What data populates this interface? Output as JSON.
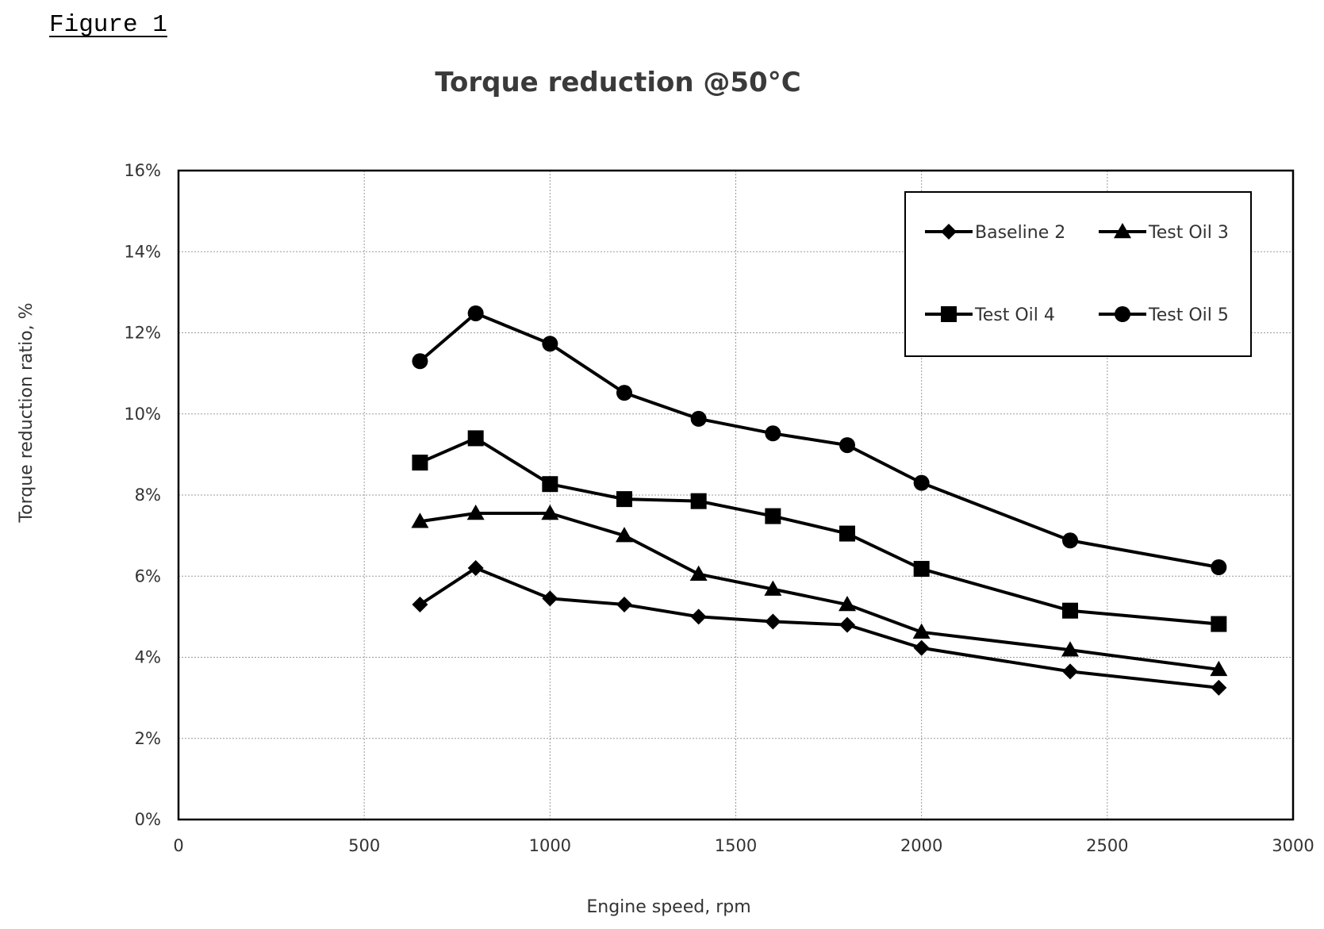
{
  "figure_label": "Figure 1",
  "chart_data": {
    "type": "line",
    "title": "Torque reduction @50°C",
    "xlabel": "Engine speed, rpm",
    "ylabel": "Torque reduction ratio, %",
    "xlim": [
      0,
      3000
    ],
    "ylim": [
      0,
      16
    ],
    "x_ticks": [
      0,
      500,
      1000,
      1500,
      2000,
      2500,
      3000
    ],
    "x_tick_labels": [
      "0",
      "500",
      "1000",
      "1500",
      "2000",
      "2500",
      "3000"
    ],
    "y_ticks": [
      0,
      2,
      4,
      6,
      8,
      10,
      12,
      14,
      16
    ],
    "y_tick_labels": [
      "0%",
      "2%",
      "4%",
      "6%",
      "8%",
      "10%",
      "12%",
      "14%",
      "16%"
    ],
    "grid": true,
    "legend_position": "top-right",
    "x": [
      650,
      800,
      1000,
      1200,
      1400,
      1600,
      1800,
      2000,
      2400,
      2800
    ],
    "series": [
      {
        "name": "Baseline 2",
        "marker": "diamond",
        "color": "#000000",
        "values": [
          5.3,
          6.2,
          5.45,
          5.3,
          5.0,
          4.88,
          4.8,
          4.23,
          3.65,
          3.25
        ]
      },
      {
        "name": "Test Oil 3",
        "marker": "triangle",
        "color": "#000000",
        "values": [
          7.35,
          7.55,
          7.55,
          7.0,
          6.05,
          5.68,
          5.3,
          4.62,
          4.18,
          3.7
        ]
      },
      {
        "name": "Test Oil 4",
        "marker": "square",
        "color": "#000000",
        "values": [
          8.8,
          9.4,
          8.27,
          7.9,
          7.85,
          7.48,
          7.05,
          6.18,
          5.15,
          4.82
        ]
      },
      {
        "name": "Test Oil 5",
        "marker": "circle",
        "color": "#000000",
        "values": [
          11.3,
          12.48,
          11.73,
          10.52,
          9.88,
          9.52,
          9.23,
          8.3,
          6.88,
          6.22
        ]
      }
    ]
  }
}
